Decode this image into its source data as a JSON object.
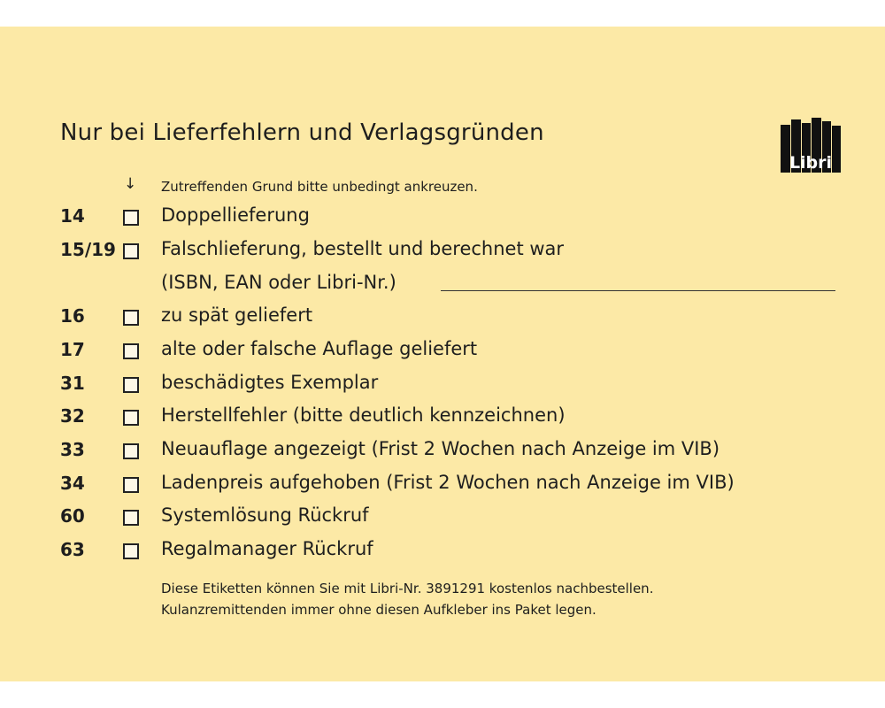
{
  "title": "Nur bei Lieferfehlern und Verlagsgründen",
  "logo_text": "Libri",
  "hint": {
    "icon": "arrow-down-icon",
    "arrow": "↓",
    "text": "Zutreffenden Grund bitte unbedingt ankreuzen."
  },
  "items": [
    {
      "code": "14",
      "label": "Doppellieferung"
    },
    {
      "code": "15/19",
      "label": "Falschlieferung, bestellt und berechnet war"
    },
    {
      "code": "",
      "label": "(ISBN, EAN oder Libri-Nr.)"
    },
    {
      "code": "16",
      "label": "zu spät geliefert"
    },
    {
      "code": "17",
      "label": "alte oder falsche Auflage geliefert"
    },
    {
      "code": "31",
      "label": "beschädigtes Exemplar"
    },
    {
      "code": "32",
      "label": "Herstellfehler (bitte deutlich kennzeichnen)"
    },
    {
      "code": "33",
      "label": "Neuauflage angezeigt (Frist 2 Wochen nach Anzeige im VIB)"
    },
    {
      "code": "34",
      "label": "Ladenpreis aufgehoben (Frist 2 Wochen nach Anzeige im VIB)"
    },
    {
      "code": "60",
      "label": "Systemlösung Rückruf"
    },
    {
      "code": "63",
      "label": "Regalmanager Rückruf"
    }
  ],
  "footer": [
    "Diese Etiketten können Sie mit Libri-Nr. 3891291 kostenlos nachbestellen.",
    "Kulanzremittenden immer ohne diesen Aufkleber ins Paket legen."
  ],
  "colors": {
    "background": "#fce9a6",
    "text": "#1e1e1e"
  }
}
